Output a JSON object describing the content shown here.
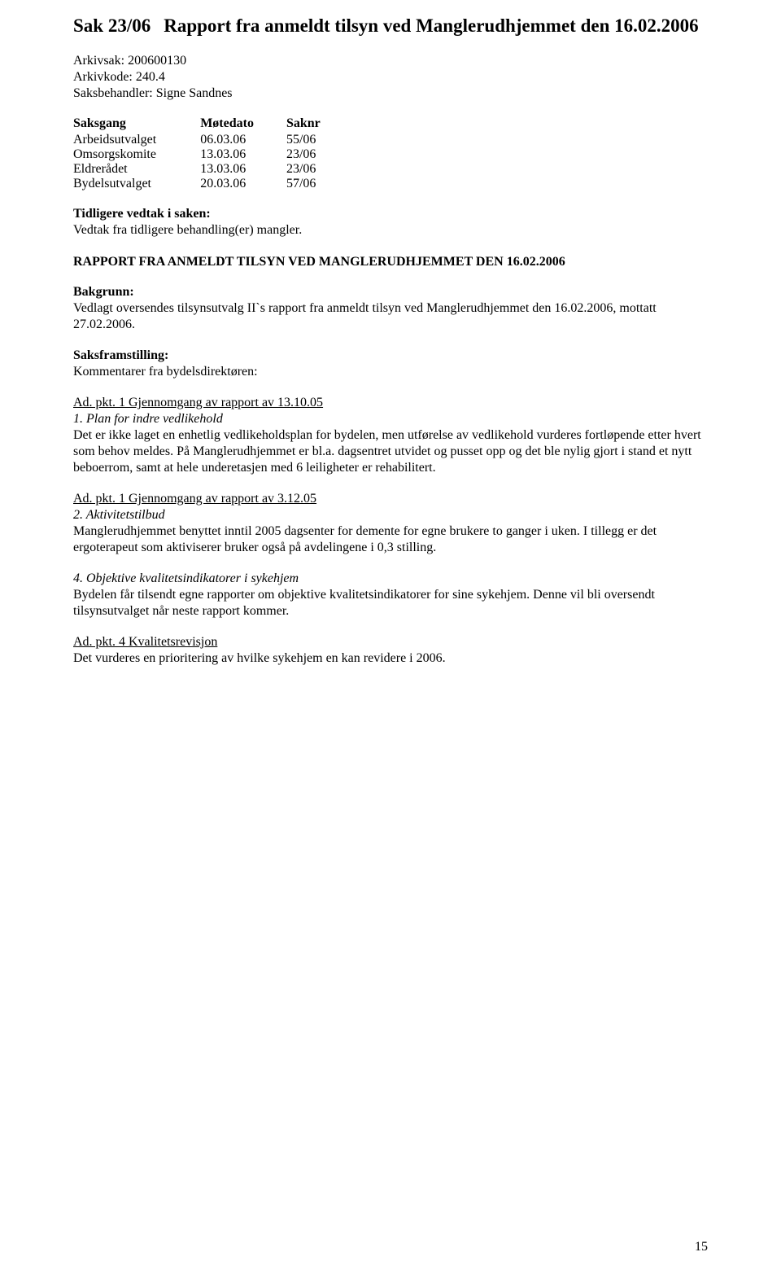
{
  "title": {
    "label": "Sak 23/06",
    "text": "Rapport fra anmeldt tilsyn ved Manglerudhjemmet den 16.02.2006"
  },
  "meta": {
    "arkivsak_label": "Arkivsak:",
    "arkivsak_value": "200600130",
    "arkivkode_label": "Arkivkode:",
    "arkivkode_value": "240.4",
    "saksbehandler_label": "Saksbehandler:",
    "saksbehandler_value": "Signe Sandnes"
  },
  "meeting": {
    "headers": {
      "body": "Saksgang",
      "date": "Møtedato",
      "saknr": "Saknr"
    },
    "rows": [
      {
        "body": "Arbeidsutvalget",
        "date": "06.03.06",
        "saknr": "55/06"
      },
      {
        "body": "Omsorgskomite",
        "date": "13.03.06",
        "saknr": "23/06"
      },
      {
        "body": "Eldrerådet",
        "date": "13.03.06",
        "saknr": "23/06"
      },
      {
        "body": "Bydelsutvalget",
        "date": "20.03.06",
        "saknr": "57/06"
      }
    ]
  },
  "prev_decision": {
    "header": "Tidligere vedtak i saken:",
    "text": "Vedtak fra tidligere behandling(er) mangler."
  },
  "report_heading": "RAPPORT FRA ANMELDT TILSYN VED MANGLERUDHJEMMET DEN 16.02.2006",
  "background": {
    "header": "Bakgrunn:",
    "text": "Vedlagt oversendes tilsynsutvalg II`s rapport fra anmeldt tilsyn ved Manglerudhjemmet den 16.02.2006, mottatt 27.02.2006."
  },
  "presentation": {
    "header": "Saksframstilling:",
    "subheader": "Kommentarer fra bydelsdirektøren:"
  },
  "pkt1": {
    "ref": "Ad. pkt. 1 Gjennomgang av rapport av 13.10.05",
    "subtitle": "1.  Plan for indre vedlikehold",
    "body": "Det er ikke laget en enhetlig vedlikeholdsplan for bydelen, men utførelse av vedlikehold vurderes fortløpende etter hvert som behov meldes.  På Manglerudhjemmet er bl.a. dagsentret utvidet og pusset opp og det ble nylig gjort i stand et nytt beboerrom, samt at hele underetasjen med 6 leiligheter er rehabilitert."
  },
  "pkt2": {
    "ref": "Ad. pkt. 1 Gjennomgang av rapport av 3.12.05",
    "subtitle": "2. Aktivitetstilbud",
    "body": "Manglerudhjemmet benyttet inntil 2005 dagsenter for demente for egne brukere to ganger i uken. I tillegg er det ergoterapeut som aktiviserer bruker også på avdelingene i 0,3 stilling."
  },
  "pkt4": {
    "subtitle": "4. Objektive kvalitetsindikatorer i sykehjem",
    "body": "Bydelen får tilsendt egne rapporter om objektive kvalitetsindikatorer for sine sykehjem.  Denne vil bli oversendt tilsynsutvalget når neste rapport kommer."
  },
  "pkt_quality": {
    "ref": "Ad. pkt. 4 Kvalitetsrevisjon",
    "body": "Det vurderes en prioritering av hvilke sykehjem en kan revidere i 2006."
  },
  "page_number": "15"
}
